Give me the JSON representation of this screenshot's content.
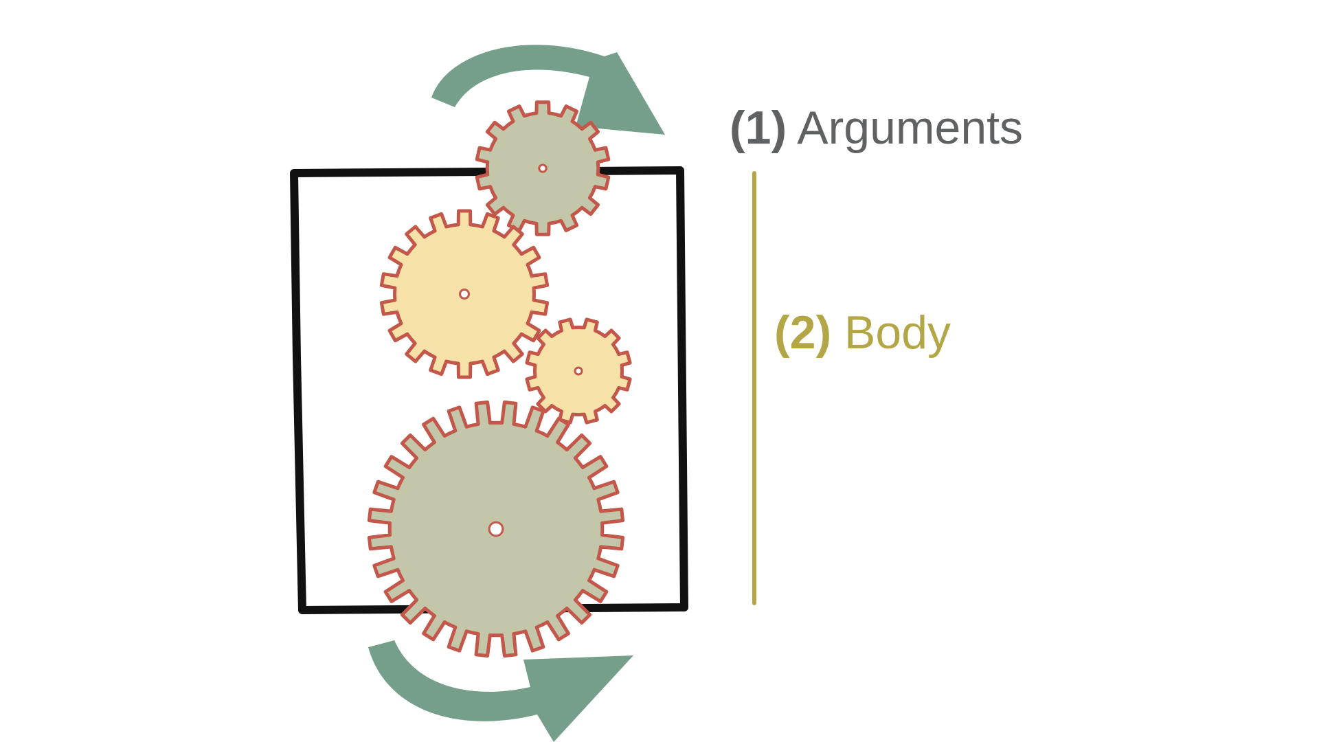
{
  "labels": {
    "arguments": {
      "number": "(1)",
      "text": "Arguments"
    },
    "body": {
      "number": "(2)",
      "text": "Body"
    }
  },
  "colors": {
    "arguments_text": "#5f6163",
    "body_text": "#b3a646",
    "body_bracket": "#b3a646",
    "box_outline": "#111111",
    "arrow": "#6e9a84",
    "gear_outline": "#c2574a",
    "gear_green": "#c3c6a9",
    "gear_yellow": "#f6e2a8",
    "background": "#ffffff"
  },
  "icons": {
    "top_arrow": "curved-arrow-clockwise-icon",
    "bottom_arrow": "curved-arrow-counterclockwise-icon",
    "gears": [
      "small-top-gear-icon",
      "large-yellow-gear-icon",
      "small-yellow-gear-icon",
      "large-bottom-gear-icon"
    ]
  }
}
